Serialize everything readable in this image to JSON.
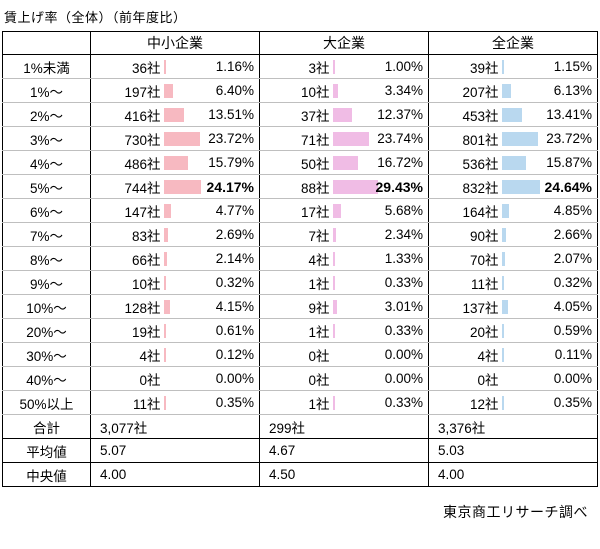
{
  "title": "賃上げ率（全体）（前年度比）",
  "source": "東京商工リサーチ調べ",
  "chart_data": {
    "type": "table",
    "title": "賃上げ率（全体）（前年度比）",
    "columns": [
      "中小企業",
      "大企業",
      "全企業"
    ],
    "bar_colors": [
      "#f7b9c1",
      "#f0bce5",
      "#b9d8ef"
    ],
    "bar_scale_note": "data bars proportional to percentage values",
    "rows": [
      {
        "label": "1%未満",
        "cells": [
          {
            "count": "36社",
            "pct": "1.16%",
            "value": 1.16
          },
          {
            "count": "3社",
            "pct": "1.00%",
            "value": 1.0
          },
          {
            "count": "39社",
            "pct": "1.15%",
            "value": 1.15
          }
        ]
      },
      {
        "label": "1%〜",
        "cells": [
          {
            "count": "197社",
            "pct": "6.40%",
            "value": 6.4
          },
          {
            "count": "10社",
            "pct": "3.34%",
            "value": 3.34
          },
          {
            "count": "207社",
            "pct": "6.13%",
            "value": 6.13
          }
        ]
      },
      {
        "label": "2%〜",
        "cells": [
          {
            "count": "416社",
            "pct": "13.51%",
            "value": 13.51
          },
          {
            "count": "37社",
            "pct": "12.37%",
            "value": 12.37
          },
          {
            "count": "453社",
            "pct": "13.41%",
            "value": 13.41
          }
        ]
      },
      {
        "label": "3%〜",
        "cells": [
          {
            "count": "730社",
            "pct": "23.72%",
            "value": 23.72
          },
          {
            "count": "71社",
            "pct": "23.74%",
            "value": 23.74
          },
          {
            "count": "801社",
            "pct": "23.72%",
            "value": 23.72
          }
        ]
      },
      {
        "label": "4%〜",
        "cells": [
          {
            "count": "486社",
            "pct": "15.79%",
            "value": 15.79
          },
          {
            "count": "50社",
            "pct": "16.72%",
            "value": 16.72
          },
          {
            "count": "536社",
            "pct": "15.87%",
            "value": 15.87
          }
        ]
      },
      {
        "label": "5%〜",
        "bold": true,
        "cells": [
          {
            "count": "744社",
            "pct": "24.17%",
            "value": 24.17
          },
          {
            "count": "88社",
            "pct": "29.43%",
            "value": 29.43
          },
          {
            "count": "832社",
            "pct": "24.64%",
            "value": 24.64
          }
        ]
      },
      {
        "label": "6%〜",
        "cells": [
          {
            "count": "147社",
            "pct": "4.77%",
            "value": 4.77
          },
          {
            "count": "17社",
            "pct": "5.68%",
            "value": 5.68
          },
          {
            "count": "164社",
            "pct": "4.85%",
            "value": 4.85
          }
        ]
      },
      {
        "label": "7%〜",
        "cells": [
          {
            "count": "83社",
            "pct": "2.69%",
            "value": 2.69
          },
          {
            "count": "7社",
            "pct": "2.34%",
            "value": 2.34
          },
          {
            "count": "90社",
            "pct": "2.66%",
            "value": 2.66
          }
        ]
      },
      {
        "label": "8%〜",
        "cells": [
          {
            "count": "66社",
            "pct": "2.14%",
            "value": 2.14
          },
          {
            "count": "4社",
            "pct": "1.33%",
            "value": 1.33
          },
          {
            "count": "70社",
            "pct": "2.07%",
            "value": 2.07
          }
        ]
      },
      {
        "label": "9%〜",
        "cells": [
          {
            "count": "10社",
            "pct": "0.32%",
            "value": 0.32
          },
          {
            "count": "1社",
            "pct": "0.33%",
            "value": 0.33
          },
          {
            "count": "11社",
            "pct": "0.32%",
            "value": 0.32
          }
        ]
      },
      {
        "label": "10%〜",
        "cells": [
          {
            "count": "128社",
            "pct": "4.15%",
            "value": 4.15
          },
          {
            "count": "9社",
            "pct": "3.01%",
            "value": 3.01
          },
          {
            "count": "137社",
            "pct": "4.05%",
            "value": 4.05
          }
        ]
      },
      {
        "label": "20%〜",
        "cells": [
          {
            "count": "19社",
            "pct": "0.61%",
            "value": 0.61
          },
          {
            "count": "1社",
            "pct": "0.33%",
            "value": 0.33
          },
          {
            "count": "20社",
            "pct": "0.59%",
            "value": 0.59
          }
        ]
      },
      {
        "label": "30%〜",
        "cells": [
          {
            "count": "4社",
            "pct": "0.12%",
            "value": 0.12
          },
          {
            "count": "0社",
            "pct": "0.00%",
            "value": 0
          },
          {
            "count": "4社",
            "pct": "0.11%",
            "value": 0.11
          }
        ]
      },
      {
        "label": "40%〜",
        "cells": [
          {
            "count": "0社",
            "pct": "0.00%",
            "value": 0
          },
          {
            "count": "0社",
            "pct": "0.00%",
            "value": 0
          },
          {
            "count": "0社",
            "pct": "0.00%",
            "value": 0
          }
        ]
      },
      {
        "label": "50%以上",
        "cells": [
          {
            "count": "11社",
            "pct": "0.35%",
            "value": 0.35
          },
          {
            "count": "1社",
            "pct": "0.33%",
            "value": 0.33
          },
          {
            "count": "12社",
            "pct": "0.35%",
            "value": 0.35
          }
        ]
      }
    ],
    "summary_rows": [
      {
        "label": "合計",
        "values": [
          "3,077社",
          "299社",
          "3,376社"
        ]
      },
      {
        "label": "平均値",
        "values": [
          "5.07",
          "4.67",
          "5.03"
        ]
      },
      {
        "label": "中央値",
        "values": [
          "4.00",
          "4.50",
          "4.00"
        ]
      }
    ]
  }
}
